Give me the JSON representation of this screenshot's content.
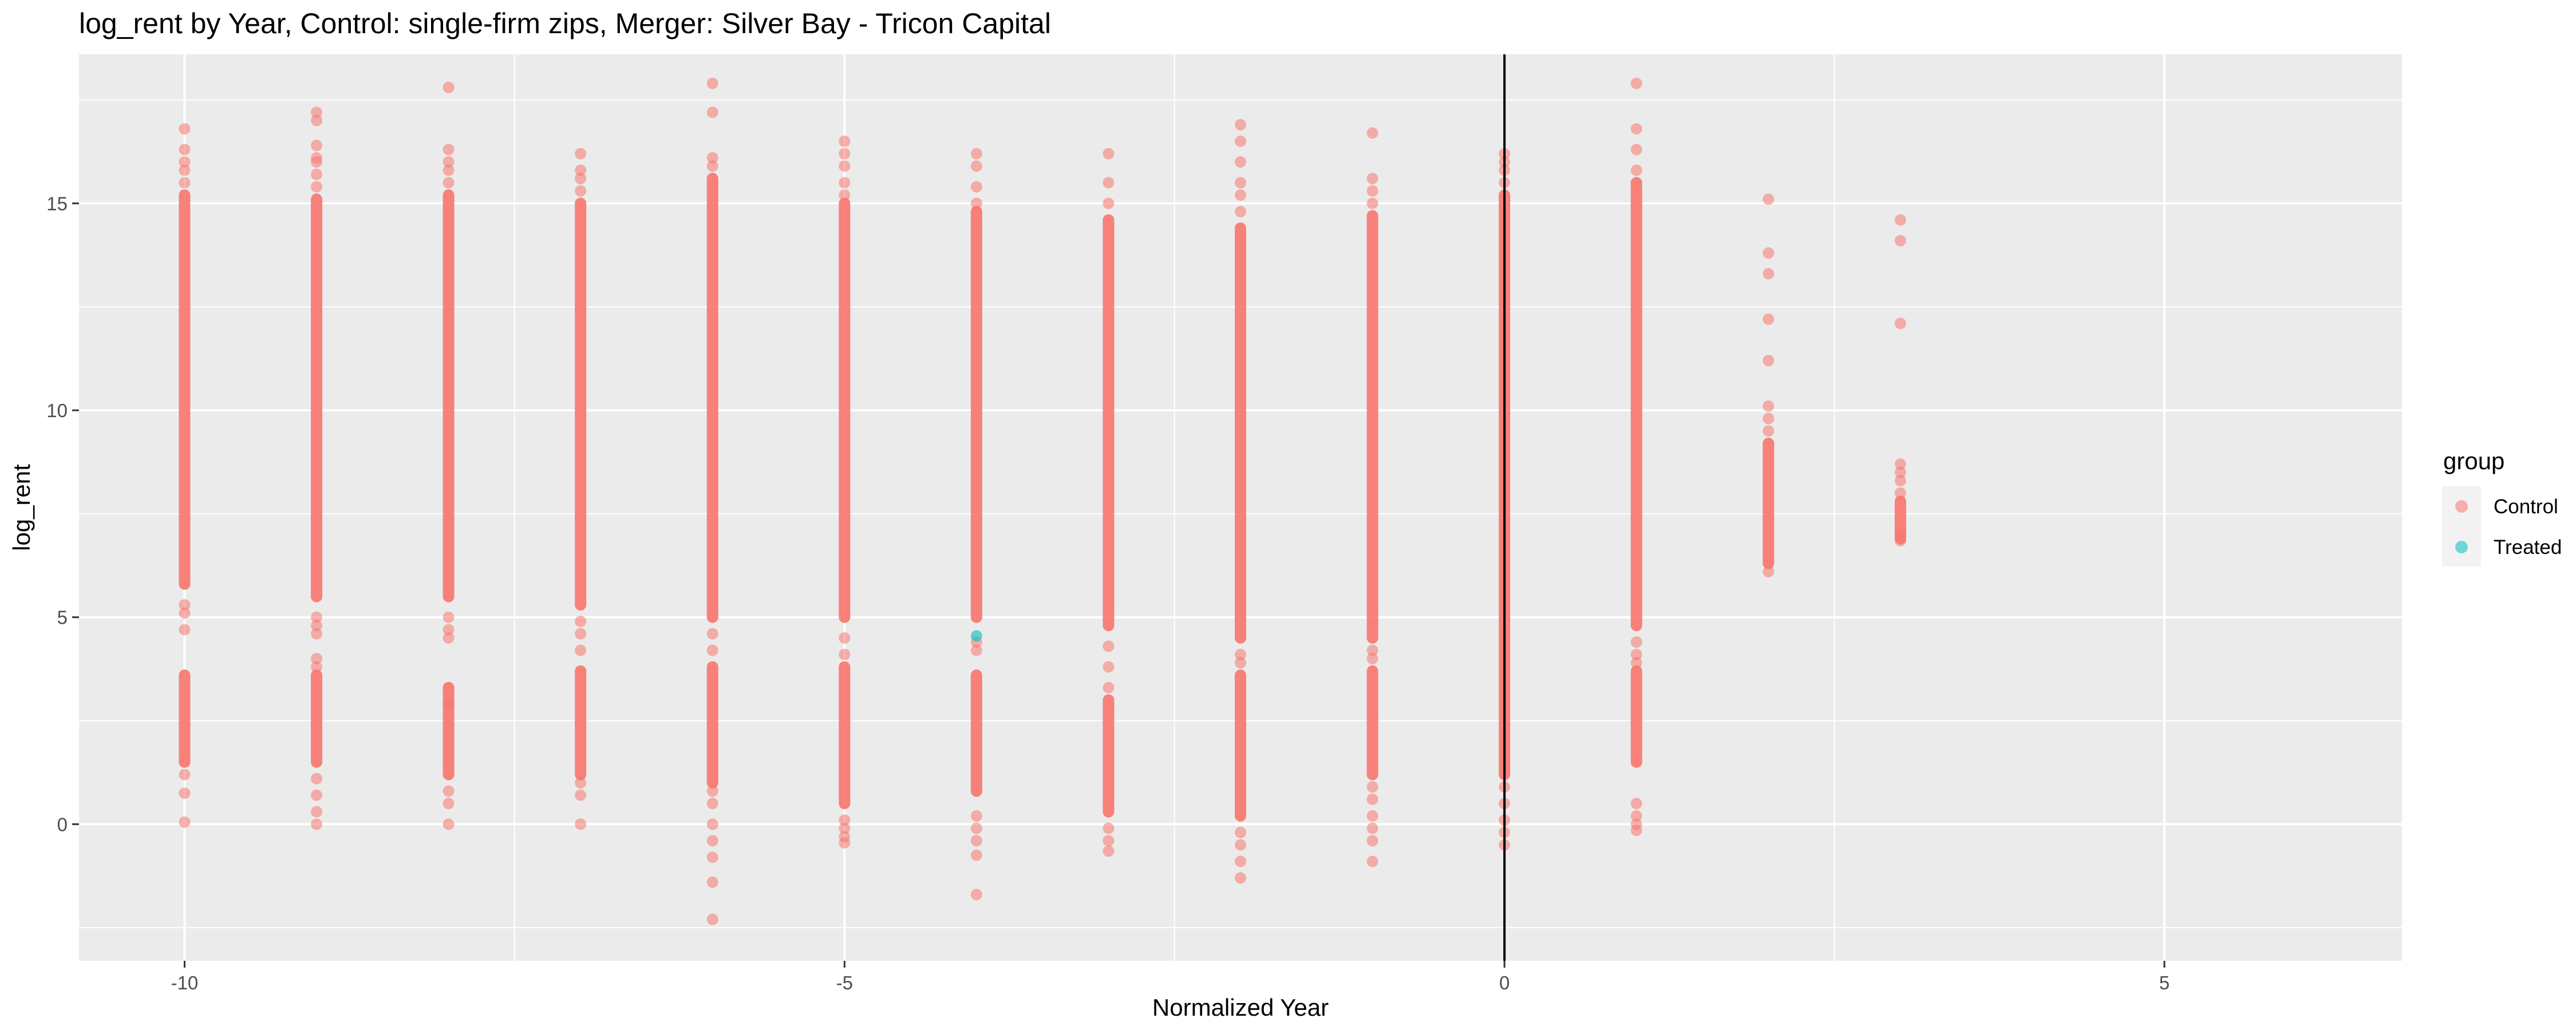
{
  "chart_data": {
    "type": "scatter",
    "title": "log_rent by Year, Control: single-firm zips, Merger: Silver Bay - Tricon Capital",
    "xlabel": "Normalized Year",
    "ylabel": "log_rent",
    "xlim": [
      -10.8,
      6.8
    ],
    "ylim": [
      -3.3,
      18.6
    ],
    "x_ticks": [
      -10,
      -5,
      0,
      5
    ],
    "x_tick_labels": [
      "-10",
      "-5",
      "0",
      "5"
    ],
    "y_ticks": [
      0,
      5,
      10,
      15
    ],
    "y_tick_labels": [
      "0",
      "5",
      "10",
      "15"
    ],
    "grid": true,
    "reference_line_x": 0,
    "legend": {
      "title": "group",
      "position": "right",
      "entries": [
        {
          "label": "Control",
          "color": "#F8766D"
        },
        {
          "label": "Treated",
          "color": "#00BFC4"
        }
      ]
    },
    "series": [
      {
        "name": "Control",
        "color": "#F8766D",
        "columns": [
          {
            "x": -10,
            "dense": [
              [
                5.8,
                15.2
              ],
              [
                1.5,
                3.6
              ]
            ],
            "points": [
              0.05,
              0.75,
              1.2,
              4.7,
              5.1,
              5.3,
              15.5,
              15.8,
              16.0,
              16.3,
              16.8
            ]
          },
          {
            "x": -9,
            "dense": [
              [
                5.5,
                15.1
              ],
              [
                1.5,
                3.6
              ]
            ],
            "points": [
              0.0,
              0.3,
              0.7,
              1.1,
              3.8,
              4.0,
              4.6,
              4.8,
              5.0,
              15.4,
              15.7,
              16.0,
              16.1,
              16.4,
              17.0,
              17.2
            ]
          },
          {
            "x": -8,
            "dense": [
              [
                5.5,
                15.2
              ],
              [
                1.2,
                3.3
              ]
            ],
            "points": [
              0.0,
              0.5,
              0.8,
              2.9,
              4.5,
              4.7,
              5.0,
              15.5,
              15.8,
              16.0,
              16.3,
              17.8
            ]
          },
          {
            "x": -7,
            "dense": [
              [
                5.3,
                15.0
              ],
              [
                1.2,
                3.7
              ]
            ],
            "points": [
              0.0,
              0.7,
              1.0,
              4.2,
              4.6,
              4.9,
              15.3,
              15.6,
              15.8,
              16.2
            ]
          },
          {
            "x": -6,
            "dense": [
              [
                5.0,
                15.6
              ],
              [
                1.0,
                3.8
              ]
            ],
            "points": [
              -2.3,
              -1.4,
              -0.8,
              -0.4,
              0.0,
              0.5,
              0.8,
              4.2,
              4.6,
              15.9,
              16.1,
              17.2,
              17.9
            ]
          },
          {
            "x": -5,
            "dense": [
              [
                5.0,
                15.0
              ],
              [
                0.5,
                3.8
              ]
            ],
            "points": [
              -0.45,
              -0.3,
              -0.1,
              0.1,
              4.1,
              4.5,
              15.2,
              15.5,
              15.9,
              16.2,
              16.5
            ]
          },
          {
            "x": -4,
            "dense": [
              [
                5.0,
                14.8
              ],
              [
                0.8,
                3.6
              ]
            ],
            "points": [
              -1.7,
              -0.75,
              -0.4,
              -0.1,
              0.2,
              4.2,
              4.4,
              15.0,
              15.4,
              15.9,
              16.2
            ]
          },
          {
            "x": -3,
            "dense": [
              [
                4.8,
                14.6
              ],
              [
                0.3,
                3.0
              ]
            ],
            "points": [
              -0.65,
              -0.4,
              -0.1,
              3.3,
              3.8,
              4.3,
              15.0,
              15.5,
              16.2
            ]
          },
          {
            "x": -2,
            "dense": [
              [
                4.5,
                14.4
              ],
              [
                0.2,
                3.6
              ]
            ],
            "points": [
              -1.3,
              -0.9,
              -0.5,
              -0.2,
              3.9,
              4.1,
              14.8,
              15.2,
              15.5,
              16.0,
              16.5,
              16.9
            ]
          },
          {
            "x": -1,
            "dense": [
              [
                4.5,
                14.7
              ],
              [
                1.2,
                3.7
              ]
            ],
            "points": [
              -0.9,
              -0.4,
              -0.1,
              0.2,
              0.6,
              0.9,
              4.0,
              4.2,
              15.0,
              15.3,
              15.6,
              16.7
            ]
          },
          {
            "x": 0,
            "dense": [
              [
                1.2,
                15.2
              ]
            ],
            "points": [
              -0.5,
              -0.2,
              0.1,
              0.5,
              0.9,
              15.5,
              15.8,
              16.0,
              16.2
            ]
          },
          {
            "x": 1,
            "dense": [
              [
                4.8,
                15.5
              ],
              [
                1.5,
                3.7
              ]
            ],
            "points": [
              -0.15,
              0.0,
              0.2,
              0.5,
              3.9,
              4.1,
              4.4,
              15.8,
              16.3,
              16.8,
              17.9
            ]
          },
          {
            "x": 2,
            "dense": [
              [
                6.3,
                9.2
              ]
            ],
            "points": [
              6.1,
              9.5,
              9.8,
              10.1,
              11.2,
              12.2,
              13.3,
              13.8,
              15.1
            ]
          },
          {
            "x": 3,
            "dense": [
              [
                6.9,
                7.8
              ]
            ],
            "points": [
              6.85,
              7.0,
              8.0,
              8.3,
              8.5,
              8.7,
              12.1,
              14.1,
              14.6
            ]
          }
        ]
      },
      {
        "name": "Treated",
        "color": "#00BFC4",
        "points": [
          {
            "x": -4,
            "y": 4.55
          }
        ]
      }
    ]
  }
}
